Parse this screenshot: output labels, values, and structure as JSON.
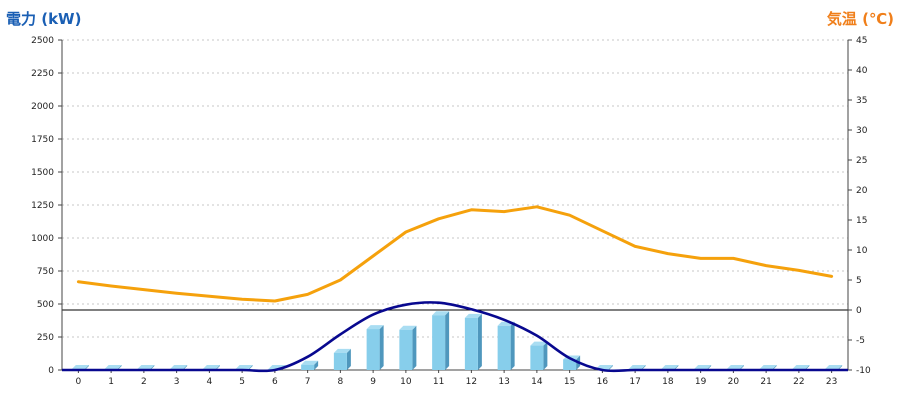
{
  "chart_data": {
    "type": "bar",
    "left_axis_title": "電力 (kW)",
    "right_axis_title": "気温 (℃)",
    "categories": [
      "0",
      "1",
      "2",
      "3",
      "4",
      "5",
      "6",
      "7",
      "8",
      "9",
      "10",
      "11",
      "12",
      "13",
      "14",
      "15",
      "16",
      "17",
      "18",
      "19",
      "20",
      "21",
      "22",
      "23"
    ],
    "left_ylim": [
      0,
      2500
    ],
    "left_ticks": [
      "0",
      "250",
      "500",
      "750",
      "1000",
      "1250",
      "1500",
      "1750",
      "2000",
      "2250",
      "2500"
    ],
    "right_ylim": [
      -10,
      45
    ],
    "right_ticks": [
      "-10",
      "-5",
      "0",
      "5",
      "10",
      "15",
      "20",
      "25",
      "30",
      "35",
      "40",
      "45"
    ],
    "reference_line_temp": 0,
    "grid": true,
    "series": [
      {
        "kind": "bar",
        "axis": "left",
        "values": [
          8,
          8,
          8,
          8,
          8,
          8,
          8,
          40,
          130,
          310,
          305,
          415,
          395,
          335,
          185,
          80,
          8,
          8,
          8,
          8,
          8,
          8,
          8,
          8
        ]
      },
      {
        "kind": "line",
        "axis": "left",
        "values": [
          0,
          0,
          0,
          0,
          0,
          0,
          0,
          100,
          270,
          420,
          495,
          510,
          460,
          380,
          260,
          90,
          0,
          0,
          0,
          0,
          0,
          0,
          0,
          0
        ]
      },
      {
        "kind": "line",
        "axis": "right",
        "values": [
          4.7,
          4.0,
          3.4,
          2.8,
          2.3,
          1.8,
          1.5,
          2.6,
          5.0,
          9.0,
          13.0,
          15.2,
          16.7,
          16.4,
          17.2,
          15.8,
          13.2,
          10.6,
          9.4,
          8.6,
          8.6,
          7.4,
          6.6,
          5.6
        ]
      }
    ],
    "colors": {
      "bar_front": "#87ceeb",
      "bar_side": "#4f97bd",
      "bar_top": "#a9ddf2",
      "power_line": "#08088f",
      "temp_line": "#f5a10c",
      "grid": "#b5b5b5",
      "axis": "#444444",
      "left_title": "#1a5fb4",
      "right_title": "#f07f1a"
    }
  }
}
